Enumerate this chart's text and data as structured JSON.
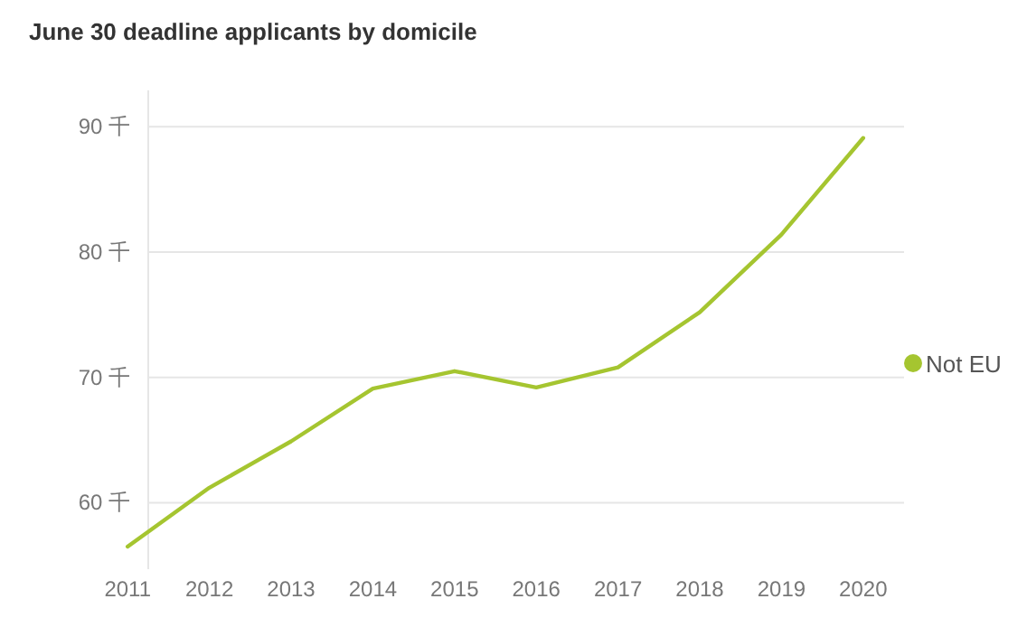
{
  "chart_data": {
    "type": "line",
    "title": "June 30 deadline applicants by domicile",
    "categories": [
      "2011",
      "2012",
      "2013",
      "2014",
      "2015",
      "2016",
      "2017",
      "2018",
      "2019",
      "2020"
    ],
    "series": [
      {
        "name": "Not EU",
        "color": "#a5c530",
        "values": [
          56.5,
          61.2,
          64.9,
          69.1,
          70.5,
          69.2,
          70.8,
          75.2,
          81.4,
          89.1
        ]
      }
    ],
    "yticks": [
      {
        "value": 60,
        "label": "60 千"
      },
      {
        "value": 70,
        "label": "70 千"
      },
      {
        "value": 80,
        "label": "80 千"
      },
      {
        "value": 90,
        "label": "90 千"
      }
    ],
    "ylim": [
      54.7,
      92.9
    ],
    "grid": "y",
    "legend": "right"
  }
}
